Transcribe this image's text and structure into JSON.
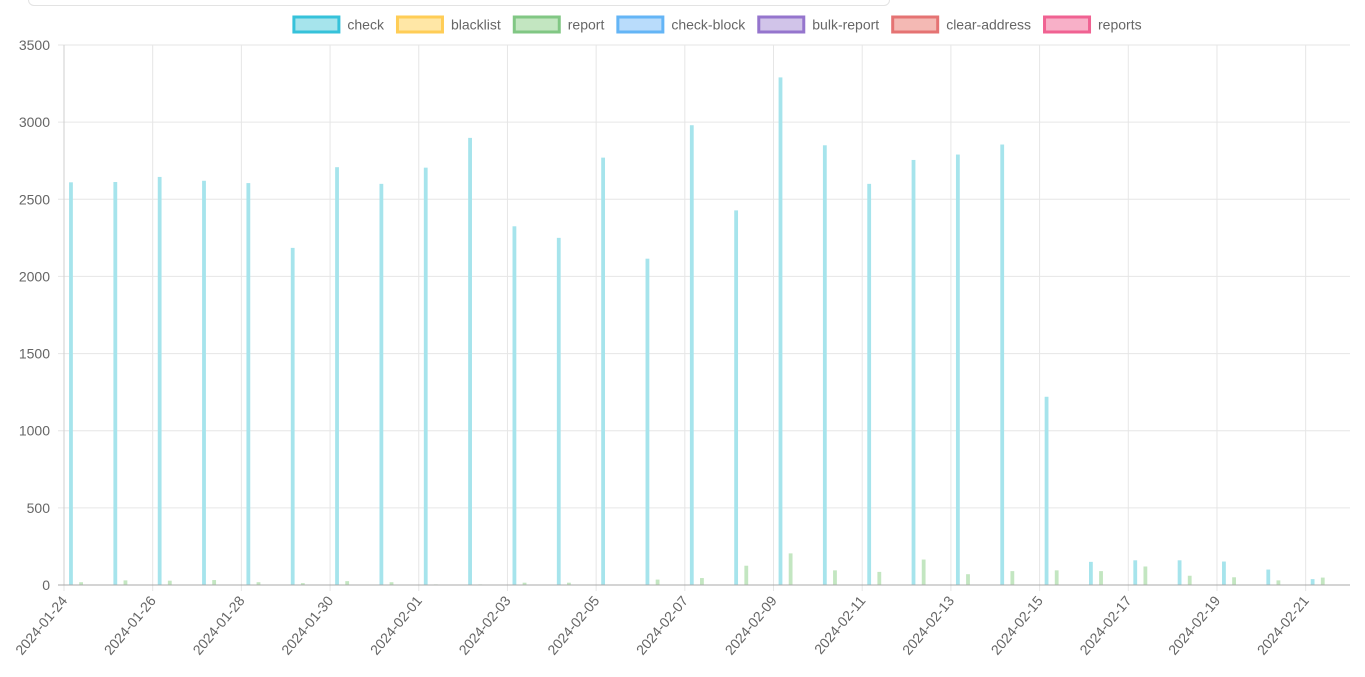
{
  "chart_data": {
    "type": "bar",
    "legend_position": "top-center",
    "grid": true,
    "ylim": [
      0,
      3500
    ],
    "yticks": [
      0,
      500,
      1000,
      1500,
      2000,
      2500,
      3000,
      3500
    ],
    "x": [
      "2024-01-24",
      "2024-01-25",
      "2024-01-26",
      "2024-01-27",
      "2024-01-28",
      "2024-01-29",
      "2024-01-30",
      "2024-01-31",
      "2024-02-01",
      "2024-02-02",
      "2024-02-03",
      "2024-02-04",
      "2024-02-05",
      "2024-02-06",
      "2024-02-07",
      "2024-02-08",
      "2024-02-09",
      "2024-02-10",
      "2024-02-11",
      "2024-02-12",
      "2024-02-13",
      "2024-02-14",
      "2024-02-15",
      "2024-02-16",
      "2024-02-17",
      "2024-02-18",
      "2024-02-19",
      "2024-02-20",
      "2024-02-21"
    ],
    "xtick_labels": [
      "2024-01-24",
      "2024-01-26",
      "2024-01-28",
      "2024-01-30",
      "2024-02-01",
      "2024-02-03",
      "2024-02-05",
      "2024-02-07",
      "2024-02-09",
      "2024-02-11",
      "2024-02-13",
      "2024-02-15",
      "2024-02-17",
      "2024-02-19",
      "2024-02-21"
    ],
    "series": [
      {
        "name": "check",
        "color": "#4bc0c0",
        "fill": "#a6e4ec",
        "border": "#36c2da",
        "values": [
          2610,
          2612,
          2645,
          2620,
          2605,
          2185,
          2708,
          2600,
          2705,
          2898,
          2325,
          2250,
          2770,
          2115,
          2980,
          2428,
          3290,
          2850,
          2600,
          2755,
          2790,
          2855,
          1220,
          150,
          160,
          160,
          152,
          100,
          38
        ]
      },
      {
        "name": "blacklist",
        "color": "#ffcd56",
        "fill": "#ffe7a6",
        "border": "#ffcd56",
        "values": [
          0,
          0,
          0,
          0,
          0,
          0,
          0,
          0,
          0,
          0,
          0,
          0,
          0,
          0,
          0,
          0,
          0,
          0,
          0,
          0,
          0,
          0,
          0,
          0,
          0,
          0,
          0,
          0,
          0
        ]
      },
      {
        "name": "report",
        "color": "#81c784",
        "fill": "#c3e6c1",
        "border": "#81c784",
        "values": [
          18,
          30,
          28,
          32,
          18,
          12,
          25,
          18,
          4,
          4,
          15,
          15,
          0,
          35,
          45,
          125,
          205,
          95,
          85,
          165,
          70,
          90,
          95,
          90,
          120,
          60,
          50,
          30,
          48
        ]
      },
      {
        "name": "check-block",
        "color": "#64b5f6",
        "fill": "#b9dcfb",
        "border": "#64b5f6",
        "values": [
          0,
          0,
          0,
          0,
          0,
          0,
          0,
          0,
          0,
          0,
          0,
          0,
          0,
          0,
          0,
          0,
          0,
          0,
          0,
          0,
          0,
          0,
          0,
          0,
          0,
          0,
          0,
          0,
          0
        ]
      },
      {
        "name": "bulk-report",
        "color": "#9575cd",
        "fill": "#d1c4e9",
        "border": "#9575cd",
        "values": [
          0,
          0,
          0,
          0,
          0,
          0,
          0,
          0,
          0,
          0,
          0,
          0,
          0,
          0,
          0,
          0,
          0,
          0,
          0,
          0,
          0,
          0,
          0,
          0,
          0,
          0,
          0,
          0,
          0
        ]
      },
      {
        "name": "clear-address",
        "color": "#e57373",
        "fill": "#f4b9b4",
        "border": "#e57373",
        "values": [
          0,
          0,
          0,
          0,
          0,
          0,
          0,
          0,
          0,
          0,
          0,
          0,
          0,
          0,
          0,
          0,
          0,
          0,
          0,
          0,
          0,
          0,
          0,
          0,
          0,
          0,
          0,
          0,
          0
        ]
      },
      {
        "name": "reports",
        "color": "#f06292",
        "fill": "#f8b0c8",
        "border": "#f06292",
        "values": [
          0,
          0,
          0,
          0,
          0,
          0,
          0,
          0,
          0,
          0,
          0,
          0,
          0,
          0,
          0,
          0,
          0,
          0,
          0,
          0,
          0,
          0,
          0,
          0,
          0,
          0,
          0,
          0,
          0
        ]
      }
    ]
  }
}
